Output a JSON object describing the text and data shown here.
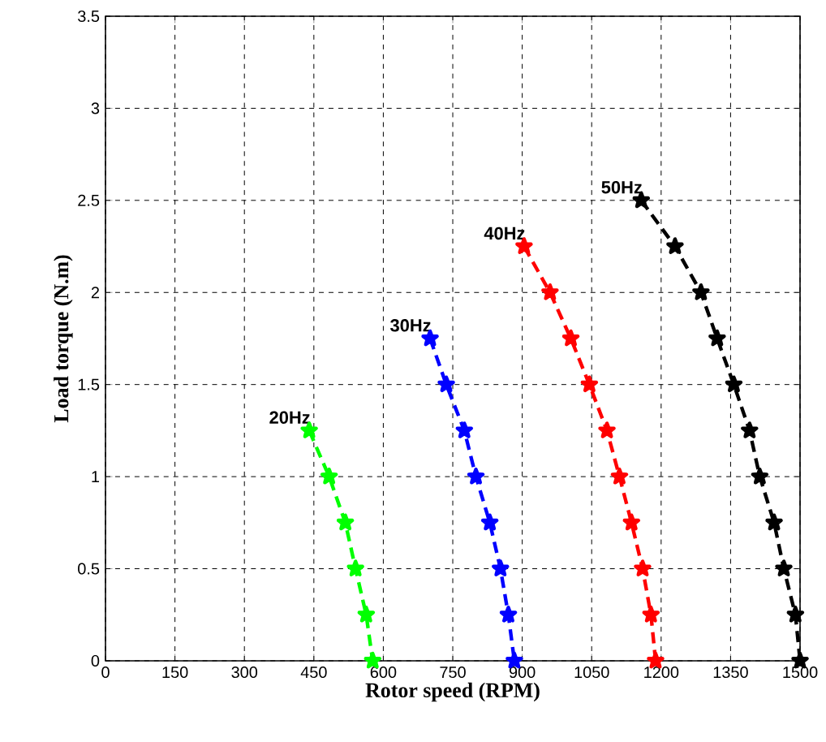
{
  "chart_data": {
    "type": "line",
    "xlabel": "Rotor speed (RPM)",
    "ylabel": "Load torque (N.m)",
    "xlim": [
      0,
      1500
    ],
    "ylim": [
      0,
      3.5
    ],
    "xticks": [
      0,
      150,
      300,
      450,
      600,
      750,
      900,
      1050,
      1200,
      1350,
      1500
    ],
    "yticks": [
      0,
      0.5,
      1,
      1.5,
      2,
      2.5,
      3,
      3.5
    ],
    "grid": true,
    "marker": "star",
    "line_style": "dashed",
    "series": [
      {
        "name": "20Hz",
        "color": "#00ff00",
        "x": [
          440,
          483,
          518,
          540,
          563,
          577
        ],
        "values": [
          1.25,
          1.0,
          0.75,
          0.5,
          0.25,
          0
        ]
      },
      {
        "name": "30Hz",
        "color": "#0000ff",
        "x": [
          701,
          736,
          775,
          800,
          830,
          853,
          870,
          883
        ],
        "values": [
          1.75,
          1.5,
          1.25,
          1.0,
          0.75,
          0.5,
          0.25,
          0
        ]
      },
      {
        "name": "40Hz",
        "color": "#ff0000",
        "x": [
          904,
          960,
          1005,
          1045,
          1083,
          1110,
          1136,
          1160,
          1178,
          1188
        ],
        "values": [
          2.25,
          2.0,
          1.75,
          1.5,
          1.25,
          1.0,
          0.75,
          0.5,
          0.25,
          0
        ]
      },
      {
        "name": "50Hz",
        "color": "#000000",
        "x": [
          1157,
          1230,
          1286,
          1321,
          1357,
          1391,
          1413,
          1444,
          1465,
          1490,
          1500
        ],
        "values": [
          2.5,
          2.25,
          2.0,
          1.75,
          1.5,
          1.25,
          1.0,
          0.75,
          0.5,
          0.25,
          0
        ]
      }
    ]
  }
}
